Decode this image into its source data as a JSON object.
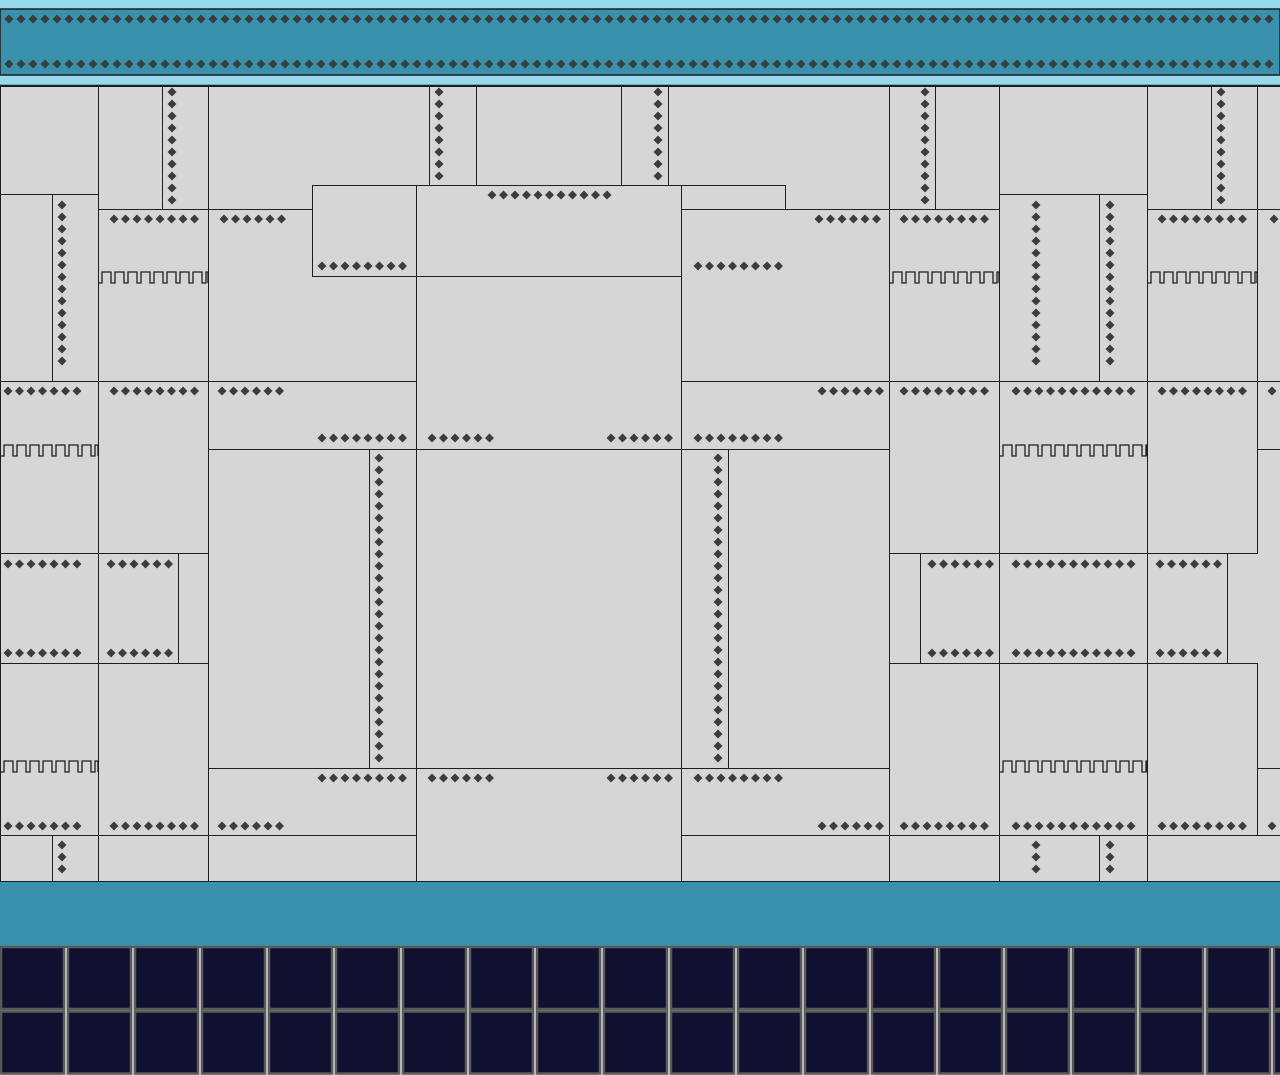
{
  "scene": {
    "colors": {
      "sky_light": "#96d8ec",
      "band_teal": "#3a91ae",
      "panel_gray": "#d6d6d6",
      "panel_outline": "#1e1e1e",
      "rivet": "#3a3d3a",
      "floor_tile": "#101030",
      "floor_grout": "#5a5a5a"
    },
    "icons": [
      "rivet-icon",
      "zigzag-trim"
    ]
  }
}
